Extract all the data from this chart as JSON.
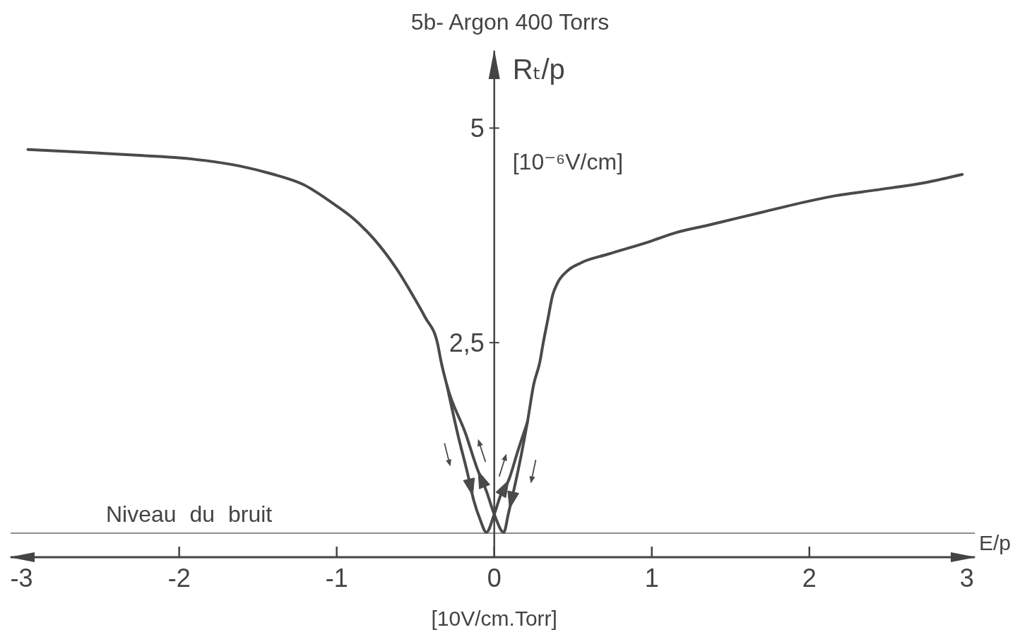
{
  "chart_data": {
    "type": "line",
    "title": "5b- Argon 400 Torrs",
    "xlabel": "E/p",
    "ylabel": "Rₜ/p",
    "annotations": [
      "[10V/cm.Torr]",
      "[10⁻⁶V/cm]"
    ],
    "series": [
      {
        "color": "#4a4a4a",
        "x": [
          -2.96,
          -2.53,
          -2.23,
          -1.92,
          -1.62,
          -1.42,
          -1.21,
          -1.03,
          -0.91,
          -0.76,
          -0.62,
          -0.52,
          -0.44,
          -0.36,
          -0.34,
          -0.3,
          -0.18,
          -0.11,
          -0.05,
          0,
          0.06,
          0.09,
          0.13,
          0.17,
          0.21,
          0.25,
          0.29,
          0.31,
          0.34,
          0.37,
          0.4,
          0.46,
          0.55,
          0.72,
          0.99,
          1.15,
          1.36,
          1.7,
          2.0,
          2.16,
          2.43,
          2.75,
          2.97
        ],
        "values": [
          4.75,
          4.71,
          4.68,
          4.64,
          4.56,
          4.47,
          4.34,
          4.13,
          3.97,
          3.7,
          3.36,
          3.06,
          2.8,
          2.49,
          2.3,
          2.0,
          1.43,
          1.04,
          0.77,
          0.5,
          0.29,
          0.51,
          0.83,
          1.18,
          1.57,
          2.01,
          2.28,
          2.49,
          2.77,
          3.05,
          3.19,
          3.33,
          3.43,
          3.53,
          3.68,
          3.78,
          3.87,
          4.02,
          4.15,
          4.21,
          4.28,
          4.37,
          4.46
        ]
      },
      {
        "color": "#4a4a4a",
        "x": [
          -0.3,
          -0.23,
          -0.17,
          -0.13,
          -0.09,
          -0.05,
          0,
          0.04,
          0.09,
          0.15,
          0.21
        ],
        "values": [
          2.0,
          1.42,
          0.98,
          0.66,
          0.44,
          0.29,
          0.5,
          0.72,
          0.89,
          1.24,
          1.57
        ]
      }
    ],
    "xlim": [
      -3.07,
      3.05
    ],
    "xticks": [
      -3,
      -2,
      -1,
      0,
      1,
      2,
      3
    ],
    "ylim": [
      0,
      5.9
    ],
    "yticks": [
      {
        "value": 2.5,
        "label": "2,5"
      },
      5
    ],
    "ref_lines": [
      {
        "axis": "y",
        "value": 0.28,
        "label": "Niveau du bruit",
        "color": "#6a6a6a"
      }
    ]
  }
}
